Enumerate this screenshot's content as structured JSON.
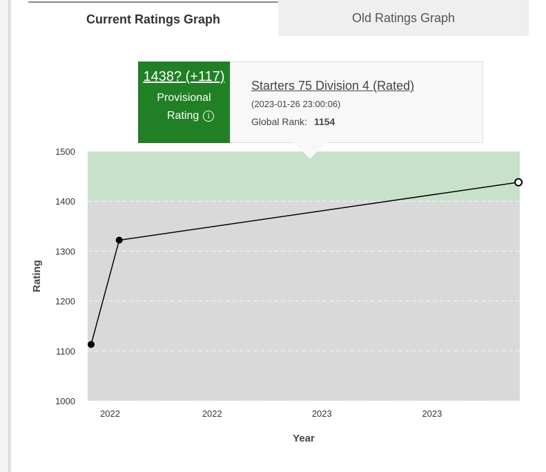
{
  "tabs": {
    "current": "Current Ratings Graph",
    "old": "Old Ratings Graph"
  },
  "tooltip": {
    "rating": "1438? (+117)",
    "provisional": "Provisional",
    "rating_label": "Rating",
    "info_icon": "i",
    "contest": "Starters 75 Division 4 (Rated)",
    "datetime": "(2023-01-26 23:00:06)",
    "rank_label": "Global Rank:",
    "rank_value": "1154"
  },
  "colors": {
    "band_high": "#c8e2ca",
    "band_low": "#d9d9d9",
    "tooltip_green": "#217f26"
  },
  "chart_data": {
    "type": "line",
    "xlabel": "Year",
    "ylabel": "Rating",
    "ylim": [
      1000,
      1500
    ],
    "yticks": [
      1000,
      1100,
      1200,
      1300,
      1400,
      1500
    ],
    "xtick_labels": [
      "2022",
      "2022",
      "2023",
      "2023"
    ],
    "xlim": [
      0,
      1
    ],
    "xticks": [
      0.052,
      0.288,
      0.542,
      0.797
    ],
    "bands": [
      {
        "from": 1400,
        "to": 1500,
        "color": "#c8e2ca"
      },
      {
        "from": 1000,
        "to": 1400,
        "color": "#d9d9d9"
      }
    ],
    "grid": true,
    "series": [
      {
        "x": [
          0.008,
          0.073,
          0.997
        ],
        "values": [
          1113,
          1322,
          1438
        ],
        "last_point_open": true
      }
    ]
  }
}
